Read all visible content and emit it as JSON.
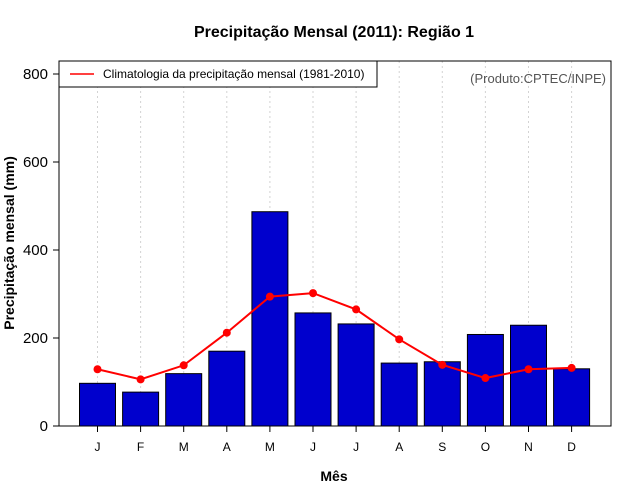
{
  "chart_data": {
    "type": "bar",
    "title": "Precipitação Mensal (2011): Região 1",
    "xlabel": "Mês",
    "ylabel": "Precipitação mensal (mm)",
    "categories": [
      "J",
      "F",
      "M",
      "A",
      "M",
      "J",
      "J",
      "A",
      "S",
      "O",
      "N",
      "D"
    ],
    "ylim": [
      0,
      800
    ],
    "yticks": [
      "0",
      "200",
      "400",
      "600",
      "800"
    ],
    "series": [
      {
        "name": "Precipitação mensal 2011",
        "type": "bar",
        "color": "#0000CD",
        "values": [
          97,
          77,
          119,
          170,
          487,
          257,
          232,
          143,
          146,
          208,
          229,
          130
        ]
      },
      {
        "name": "Climatologia da precipitação mensal (1981-2010)",
        "type": "line",
        "color": "#FF0000",
        "values": [
          129,
          106,
          138,
          212,
          294,
          302,
          265,
          197,
          139,
          109,
          129,
          132
        ]
      }
    ],
    "legend": {
      "label": "Climatologia da precipitação mensal (1981-2010)",
      "position": "top-left"
    },
    "source_note": "(Produto:CPTEC/INPE)",
    "grid": "vertical dotted"
  }
}
